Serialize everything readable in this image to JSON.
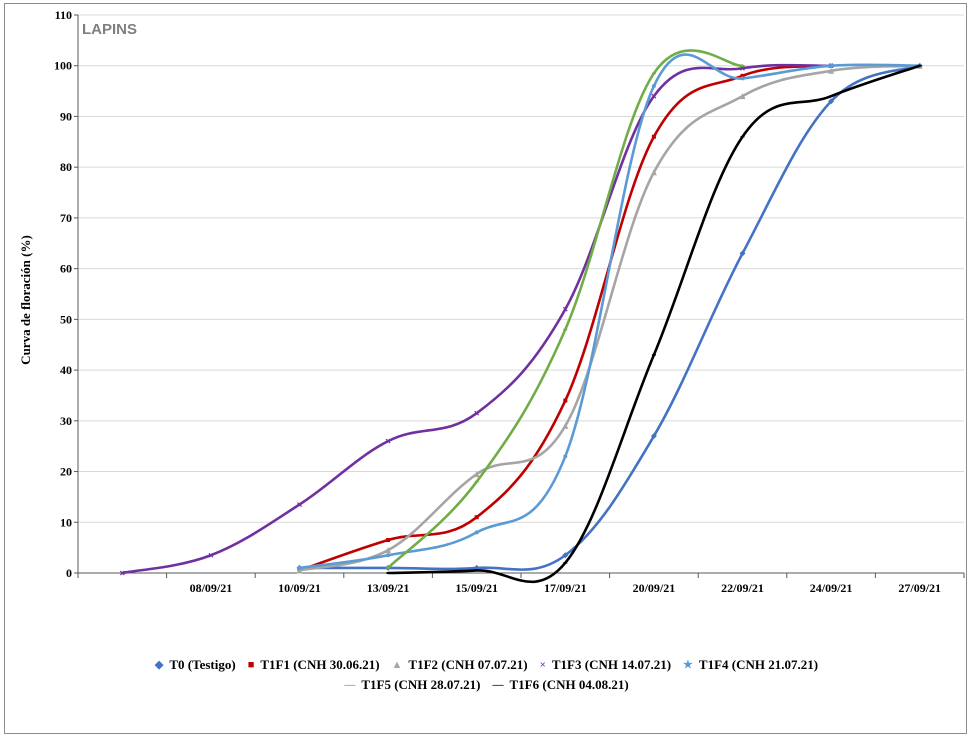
{
  "chart_data": {
    "type": "line",
    "title": "LAPINS",
    "xlabel": "",
    "ylabel": "Curva de floración (%)",
    "ylim": [
      0,
      110
    ],
    "yticks": [
      "0",
      "10",
      "20",
      "30",
      "40",
      "50",
      "60",
      "70",
      "80",
      "90",
      "100",
      "110"
    ],
    "x_categories": [
      "",
      "08/09/21",
      "10/09/21",
      "13/09/21",
      "15/09/21",
      "17/09/21",
      "20/09/21",
      "22/09/21",
      "24/09/21",
      "27/09/21"
    ],
    "grid": true,
    "legend_position": "bottom",
    "series": [
      {
        "name": "T0 (Testigo)",
        "color": "#4472c4",
        "marker": "diamond",
        "x": [
          2,
          3,
          4,
          5,
          6,
          7,
          8,
          9
        ],
        "values": [
          1,
          1,
          1,
          3.5,
          27,
          63,
          93,
          100
        ]
      },
      {
        "name": "T1F1 (CNH 30.06.21)",
        "color": "#c00000",
        "marker": "square",
        "x": [
          2,
          3,
          4,
          5,
          6,
          7,
          8
        ],
        "values": [
          0.5,
          6.5,
          11,
          34,
          86,
          98,
          100
        ]
      },
      {
        "name": "T1F2 (CNH 07.07.21)",
        "color": "#a5a5a5",
        "marker": "triangle",
        "x": [
          2,
          3,
          4,
          5,
          6,
          7,
          8,
          9
        ],
        "values": [
          0.5,
          4.5,
          19.5,
          29,
          79,
          94,
          99,
          100
        ]
      },
      {
        "name": "T1F3 (CNH 14.07.21)",
        "color": "#7030a0",
        "marker": "cross",
        "x": [
          0,
          1,
          2,
          3,
          4,
          5,
          6,
          7,
          8
        ],
        "values": [
          0,
          3.5,
          13.5,
          26,
          31.5,
          52,
          94,
          99.5,
          100
        ]
      },
      {
        "name": "T1F4 (CNH 21.07.21)",
        "color": "#5b9bd5",
        "marker": "star",
        "x": [
          2,
          3,
          4,
          5,
          6,
          7,
          8,
          9
        ],
        "values": [
          1,
          3.5,
          8,
          23,
          96,
          97.5,
          100,
          100
        ]
      },
      {
        "name": "T1F5 (CNH 28.07.21)",
        "color": "#70ad47",
        "marker": "dash",
        "x": [
          3,
          4,
          5,
          6,
          7
        ],
        "values": [
          1,
          18,
          48,
          98.5,
          100
        ]
      },
      {
        "name": "T1F6 (CNH 04.08.21)",
        "color": "#000000",
        "marker": "dash",
        "x": [
          3,
          4,
          5,
          6,
          7,
          8,
          9
        ],
        "values": [
          0,
          0.5,
          2,
          43,
          86,
          94,
          100
        ]
      }
    ]
  }
}
